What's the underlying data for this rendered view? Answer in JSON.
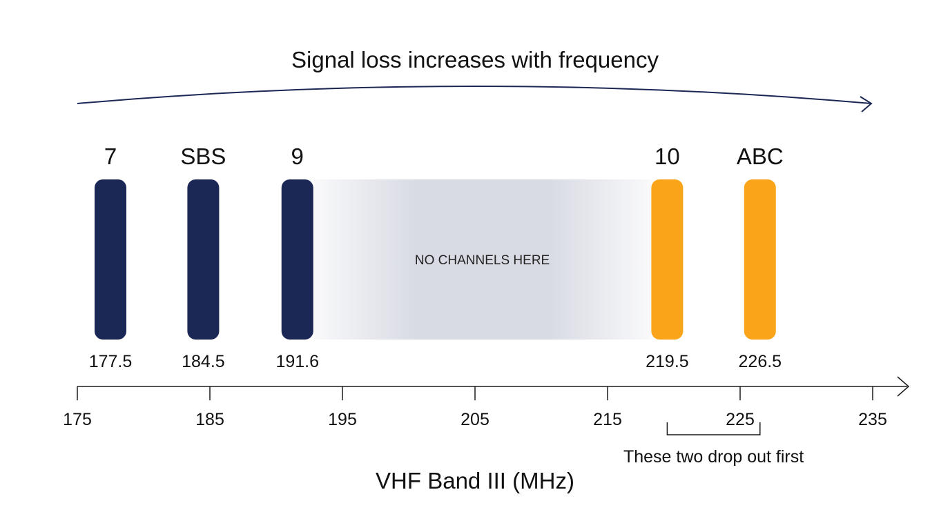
{
  "header": {
    "title": "Signal loss increases with frequency"
  },
  "colors": {
    "navy": "#1b2754",
    "amber": "#faa519",
    "gap": "#d9dbe4",
    "axis": "#1b1b1b"
  },
  "chart_data": {
    "type": "bar",
    "xlabel": "VHF Band III (MHz)",
    "xlim": [
      175,
      235
    ],
    "x_ticks": [
      175,
      185,
      195,
      205,
      215,
      225,
      235
    ],
    "x_tick_labels": [
      "175",
      "185",
      "195",
      "205",
      "215",
      "225",
      "235"
    ],
    "channels": [
      {
        "name": "7",
        "freq": 177.5,
        "freq_label": "177.5",
        "color": "navy"
      },
      {
        "name": "SBS",
        "freq": 184.5,
        "freq_label": "184.5",
        "color": "navy"
      },
      {
        "name": "9",
        "freq": 191.6,
        "freq_label": "191.6",
        "color": "navy"
      },
      {
        "name": "10",
        "freq": 219.5,
        "freq_label": "219.5",
        "color": "amber"
      },
      {
        "name": "ABC",
        "freq": 226.5,
        "freq_label": "226.5",
        "color": "amber"
      }
    ],
    "gap": {
      "from": 191.6,
      "to": 219.5,
      "label": "NO CHANNELS HERE"
    },
    "bracket": {
      "from": 219.5,
      "to": 226.5,
      "label": "These two drop out first"
    }
  }
}
